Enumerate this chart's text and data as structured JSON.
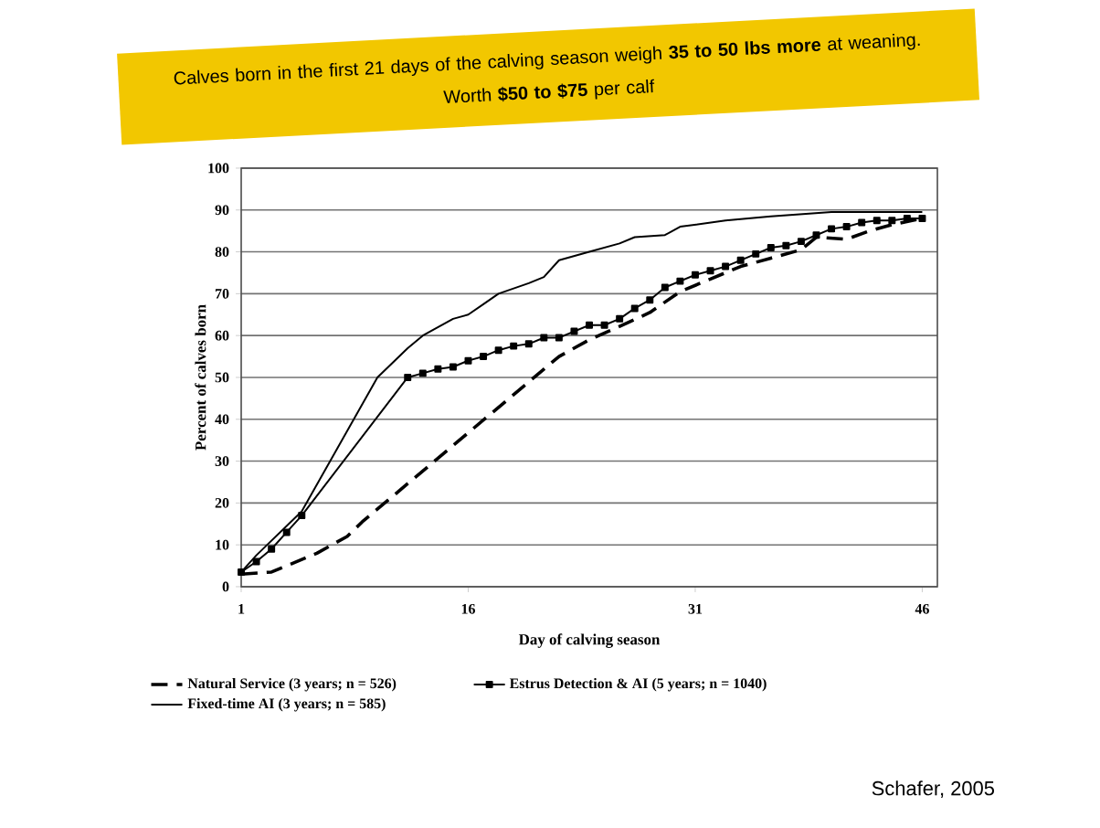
{
  "chart_data": {
    "type": "line",
    "xlabel": "Day of calving season",
    "ylabel": "Percent of calves born",
    "xlim": [
      1,
      47
    ],
    "xticks": [
      1,
      16,
      31,
      46
    ],
    "ylim": [
      0,
      100
    ],
    "yticks": [
      0,
      10,
      20,
      30,
      40,
      50,
      60,
      70,
      80,
      90,
      100
    ],
    "grid": "y",
    "legend": "bottom",
    "series": [
      {
        "name": "Natural Service (3 years; n = 526)",
        "color": "#000000",
        "line_style": "dashed",
        "marker": "none",
        "x": [
          1,
          3,
          6,
          8,
          9,
          22,
          24,
          26.5,
          28,
          30,
          32,
          34,
          36,
          38,
          39,
          41,
          42.5,
          44,
          46
        ],
        "values": [
          3,
          3.5,
          8,
          12,
          15.5,
          55,
          59,
          63,
          65.5,
          70.5,
          73.5,
          76.5,
          78.5,
          80.5,
          83.5,
          83,
          85,
          86.5,
          88
        ]
      },
      {
        "name": "Estrus Detection & AI (5 years; n = 1040)",
        "color": "#000000",
        "line_style": "solid",
        "marker": "square",
        "x": [
          1,
          2,
          3,
          4,
          5,
          12,
          13,
          14,
          15,
          16,
          17,
          18,
          19,
          20,
          21,
          22,
          23,
          24,
          25,
          26,
          27,
          28,
          29,
          30,
          31,
          32,
          33,
          34,
          35,
          36,
          37,
          38,
          39,
          40,
          41,
          42,
          43,
          44,
          45,
          46
        ],
        "values": [
          3.5,
          6,
          9,
          13,
          17,
          50,
          51,
          52,
          52.5,
          54,
          55,
          56.5,
          57.5,
          58,
          59.5,
          59.5,
          61,
          62.5,
          62.5,
          64,
          66.5,
          68.5,
          71.5,
          73,
          74.5,
          75.5,
          76.5,
          78,
          79.5,
          81,
          81.5,
          82.5,
          84,
          85.5,
          86,
          87,
          87.5,
          87.5,
          88,
          88
        ]
      },
      {
        "name": "Fixed-time AI (3 years; n = 585)",
        "color": "#000000",
        "line_style": "solid",
        "marker": "none",
        "x": [
          1,
          2,
          5,
          10,
          12,
          13,
          15,
          16,
          17,
          18,
          20,
          21,
          22,
          24,
          26,
          27,
          29,
          30,
          33,
          36,
          40,
          46
        ],
        "values": [
          3.5,
          7.5,
          18,
          50,
          57,
          60,
          64,
          65,
          67.5,
          70,
          72.5,
          74,
          78,
          80,
          82,
          83.5,
          84,
          86,
          87.5,
          88.5,
          89.5,
          89.5
        ]
      }
    ],
    "annotations": [
      "Calves born in the first 21 days of the calving season weigh **35 to 50 lbs more** at weaning.",
      "Worth **$50 to $75** per calf",
      "Schafer, 2005"
    ]
  }
}
